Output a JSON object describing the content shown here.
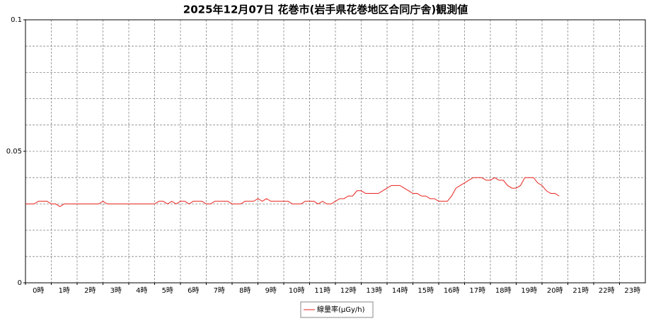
{
  "chart_data": {
    "type": "line",
    "title": "2025年12月07日 花巻市(岩手県花巻地区合同庁舎)観測値",
    "categories": [
      "0時",
      "1時",
      "2時",
      "3時",
      "4時",
      "5時",
      "6時",
      "7時",
      "8時",
      "9時",
      "10時",
      "11時",
      "12時",
      "13時",
      "14時",
      "15時",
      "16時",
      "17時",
      "18時",
      "19時",
      "20時",
      "21時",
      "22時",
      "23時"
    ],
    "xlim": [
      0,
      1440
    ],
    "x": [
      0,
      10,
      20,
      30,
      40,
      50,
      60,
      70,
      80,
      90,
      100,
      110,
      120,
      130,
      140,
      150,
      160,
      170,
      180,
      190,
      200,
      210,
      220,
      230,
      240,
      250,
      260,
      270,
      280,
      290,
      300,
      310,
      320,
      330,
      340,
      350,
      360,
      370,
      380,
      390,
      400,
      410,
      420,
      430,
      440,
      450,
      460,
      470,
      480,
      490,
      500,
      510,
      520,
      530,
      540,
      550,
      560,
      570,
      580,
      590,
      600,
      610,
      620,
      630,
      640,
      650,
      660,
      670,
      680,
      690,
      700,
      710,
      720,
      730,
      740,
      750,
      760,
      770,
      780,
      790,
      800,
      810,
      820,
      830,
      840,
      850,
      860,
      870,
      880,
      890,
      900,
      910,
      920,
      930,
      940,
      950,
      960,
      970,
      980,
      990,
      1000,
      1010,
      1020,
      1030,
      1040,
      1050,
      1060,
      1070,
      1080,
      1090,
      1100,
      1110,
      1120,
      1130,
      1140,
      1150,
      1160,
      1170,
      1180,
      1190,
      1200,
      1210,
      1220,
      1230,
      1240
    ],
    "series": [
      {
        "name": "線量率(µGy/h)",
        "color": "#e8231d",
        "values": [
          0.03,
          0.03,
          0.03,
          0.031,
          0.031,
          0.031,
          0.03,
          0.03,
          0.029,
          0.03,
          0.03,
          0.03,
          0.03,
          0.03,
          0.03,
          0.03,
          0.03,
          0.03,
          0.031,
          0.03,
          0.03,
          0.03,
          0.03,
          0.03,
          0.03,
          0.03,
          0.03,
          0.03,
          0.03,
          0.03,
          0.03,
          0.031,
          0.031,
          0.03,
          0.031,
          0.03,
          0.031,
          0.031,
          0.03,
          0.031,
          0.031,
          0.031,
          0.03,
          0.03,
          0.031,
          0.031,
          0.031,
          0.031,
          0.03,
          0.03,
          0.03,
          0.031,
          0.031,
          0.031,
          0.032,
          0.031,
          0.032,
          0.031,
          0.031,
          0.031,
          0.031,
          0.031,
          0.03,
          0.03,
          0.03,
          0.031,
          0.031,
          0.031,
          0.03,
          0.031,
          0.03,
          0.03,
          0.031,
          0.032,
          0.032,
          0.033,
          0.033,
          0.035,
          0.035,
          0.034,
          0.034,
          0.034,
          0.034,
          0.035,
          0.036,
          0.037,
          0.037,
          0.037,
          0.036,
          0.035,
          0.034,
          0.034,
          0.033,
          0.033,
          0.032,
          0.032,
          0.031,
          0.031,
          0.031,
          0.033,
          0.036,
          0.037,
          0.038,
          0.039,
          0.04,
          0.04,
          0.04,
          0.039,
          0.039,
          0.04,
          0.039,
          0.039,
          0.037,
          0.036,
          0.036,
          0.037,
          0.04,
          0.04,
          0.04,
          0.038,
          0.037,
          0.035,
          0.034,
          0.034,
          0.033
        ]
      }
    ],
    "ylim": [
      0,
      0.1
    ],
    "yticks": [
      0,
      0.05,
      0.1
    ],
    "ygrid": [
      0.01,
      0.02,
      0.03,
      0.04,
      0.05,
      0.06,
      0.07,
      0.08,
      0.09
    ],
    "grid": true,
    "legend": "bottom"
  }
}
